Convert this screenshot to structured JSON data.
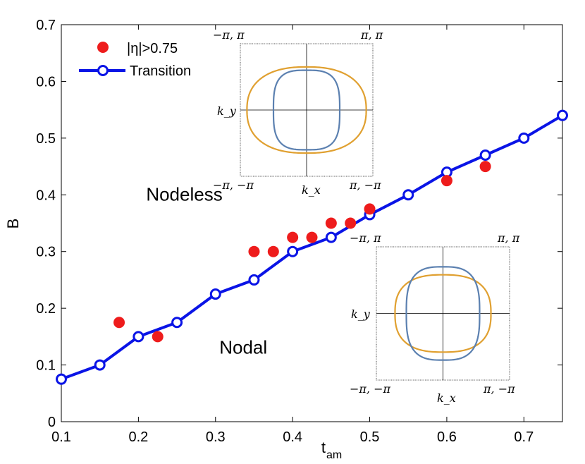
{
  "chart_data": {
    "type": "scatter+line",
    "xlabel": "t",
    "xlabel_sub": "am",
    "ylabel": "B",
    "xlim": [
      0.1,
      0.75
    ],
    "ylim": [
      0,
      0.7
    ],
    "xticks": [
      0.1,
      0.2,
      0.3,
      0.4,
      0.5,
      0.6,
      0.7
    ],
    "yticks": [
      0,
      0.1,
      0.2,
      0.3,
      0.4,
      0.5,
      0.6,
      0.7
    ],
    "xtick_labels": [
      "0.1",
      "0.2",
      "0.3",
      "0.4",
      "0.5",
      "0.6",
      "0.7"
    ],
    "ytick_labels": [
      "0",
      "0.1",
      "0.2",
      "0.3",
      "0.4",
      "0.5",
      "0.6",
      "0.7"
    ],
    "series": [
      {
        "name": "|η|>0.75",
        "kind": "scatter",
        "color": "#ee1c1c",
        "x": [
          0.175,
          0.225,
          0.35,
          0.375,
          0.4,
          0.425,
          0.45,
          0.475,
          0.5,
          0.6,
          0.65
        ],
        "y": [
          0.175,
          0.15,
          0.3,
          0.3,
          0.325,
          0.325,
          0.35,
          0.35,
          0.375,
          0.425,
          0.45
        ]
      },
      {
        "name": "Transition",
        "kind": "line-markers",
        "color": "#0a14e6",
        "x": [
          0.1,
          0.15,
          0.2,
          0.25,
          0.3,
          0.35,
          0.4,
          0.45,
          0.5,
          0.55,
          0.6,
          0.65,
          0.7,
          0.75
        ],
        "y": [
          0.075,
          0.1,
          0.15,
          0.175,
          0.225,
          0.25,
          0.3,
          0.325,
          0.365,
          0.4,
          0.44,
          0.47,
          0.5,
          0.54
        ]
      }
    ],
    "annotations": [
      {
        "text": "Nodeless",
        "x": 0.21,
        "y": 0.39
      },
      {
        "text": "Nodal",
        "x": 0.305,
        "y": 0.12
      }
    ],
    "insets": [
      {
        "name": "nodeless-inset",
        "corner_labels": {
          "top_left": "−π, π",
          "top_right": "π, π",
          "bottom_left": "−π, −π",
          "bottom_right": "π, −π"
        },
        "xlabel": "k_x",
        "ylabel": "k_y",
        "curves": [
          {
            "name": "outer-orange",
            "color": "#e0a030",
            "kx_extent": 0.9,
            "ky_extent": 0.65,
            "shape": 2.4
          },
          {
            "name": "inner-blue",
            "color": "#5b80b0",
            "kx_extent": 0.5,
            "ky_extent": 0.6,
            "shape": 3.2
          }
        ]
      },
      {
        "name": "nodal-inset",
        "corner_labels": {
          "top_left": "−π, π",
          "top_right": "π, π",
          "bottom_left": "−π, −π",
          "bottom_right": "π, −π"
        },
        "xlabel": "k_x",
        "ylabel": "k_y",
        "curves": [
          {
            "name": "orange",
            "color": "#e0a030",
            "kx_extent": 0.72,
            "ky_extent": 0.58,
            "shape": 2.6
          },
          {
            "name": "blue",
            "color": "#5b80b0",
            "kx_extent": 0.55,
            "ky_extent": 0.7,
            "shape": 3.0
          }
        ]
      }
    ]
  }
}
